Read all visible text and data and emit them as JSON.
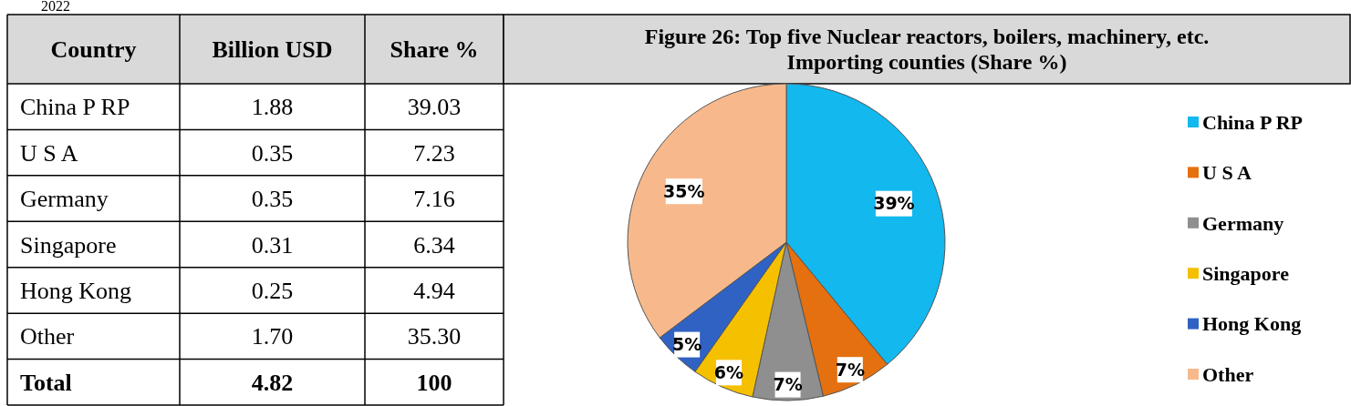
{
  "chart_data": [
    {
      "type": "other",
      "title": "2022",
      "annotations": [
        "Country",
        "Billion USD",
        "Share %",
        "China P RP",
        "1.88",
        "39.03",
        "U S A",
        "0.35",
        "7.23",
        "Germany",
        "0.35",
        "7.16",
        "Singapore",
        "0.31",
        "6.34",
        "Hong Kong",
        "0.25",
        "4.94",
        "Other",
        "1.70",
        "35.30",
        "Total",
        "4.82",
        "100"
      ]
    },
    {
      "type": "pie",
      "title": "Figure 26: Top five Nuclear reactors, boilers, machinery, etc. Importing counties (Share %)",
      "categories": [
        "China P RP",
        "U S A",
        "Germany",
        "Singapore",
        "Hong Kong",
        "Other"
      ],
      "values": [
        39.03,
        7.23,
        7.16,
        6.34,
        4.94,
        35.3
      ],
      "colors": [
        "#12b8ee",
        "#e4700f",
        "#8f8f8f",
        "#f5c000",
        "#2f62c2",
        "#f7b98c"
      ],
      "value_labels": [
        "39%",
        "7%",
        "7%",
        "6%",
        "5%",
        "35%"
      ],
      "legend": "right"
    }
  ]
}
